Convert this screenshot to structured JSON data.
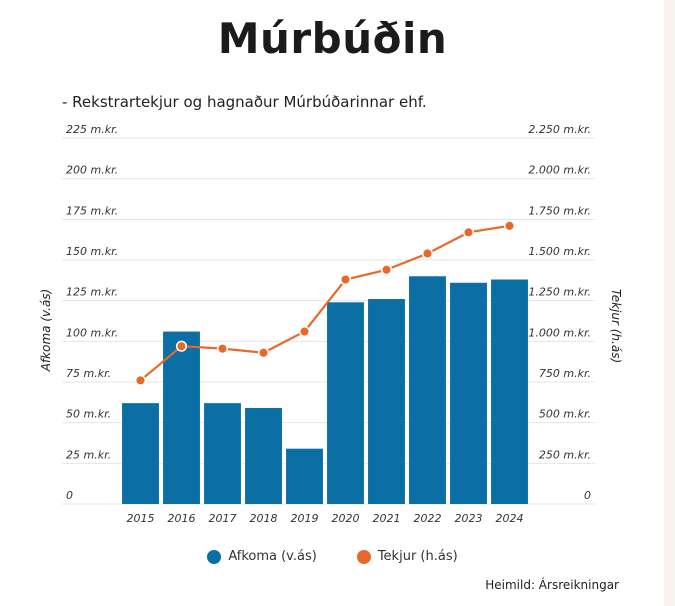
{
  "chart_data": {
    "type": "bar",
    "title": "Múrbúðin",
    "subtitle": "- Rekstrartekjur og hagnaður Múrbúðarinnar ehf.",
    "categories": [
      "2015",
      "2016",
      "2017",
      "2018",
      "2019",
      "2020",
      "2021",
      "2022",
      "2023",
      "2024"
    ],
    "series": [
      {
        "name": "Afkoma (v.ás)",
        "type": "bar",
        "axis": "left",
        "color": "#0b6fa6",
        "values": [
          62,
          106,
          62,
          59,
          34,
          124,
          126,
          140,
          136,
          138
        ]
      },
      {
        "name": "Tekjur (h.ás)",
        "type": "line",
        "axis": "right",
        "color": "#e8682a",
        "values": [
          760,
          970,
          955,
          930,
          1060,
          1380,
          1440,
          1540,
          1670,
          1710
        ]
      }
    ],
    "ylabel_left": "Afkoma (v.ás)",
    "ylabel_right": "Tekjur (h.ás)",
    "ylim_left": [
      0,
      225
    ],
    "ylim_right": [
      0,
      2250
    ],
    "yticks_left": [
      "0",
      "25 m.kr.",
      "50 m.kr.",
      "75 m.kr.",
      "100 m.kr.",
      "125 m.kr.",
      "150 m.kr.",
      "175 m.kr.",
      "200 m.kr.",
      "225 m.kr."
    ],
    "yticks_right": [
      "0",
      "250 m.kr.",
      "500 m.kr.",
      "750 m.kr.",
      "1.000 m.kr.",
      "1.250 m.kr.",
      "1.500 m.kr.",
      "1.750 m.kr.",
      "2.000 m.kr.",
      "2.250 m.kr."
    ],
    "grid": true,
    "legend_position": "bottom-center",
    "source": "Heimild: Ársreikningar"
  }
}
